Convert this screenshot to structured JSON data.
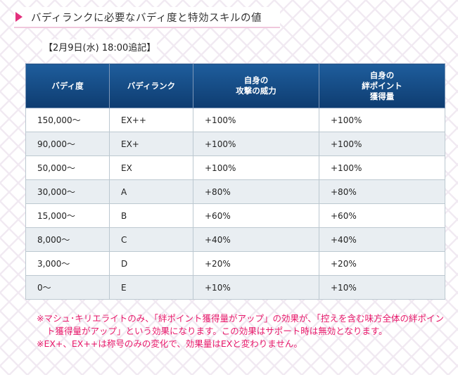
{
  "heading": {
    "title": "バディランクに必要なバディ度と特効スキルの値"
  },
  "date_note": "【2月9日(水) 18:00追記】",
  "table": {
    "headers": [
      [
        "バディ度"
      ],
      [
        "バディランク"
      ],
      [
        "自身の",
        "攻撃の威力"
      ],
      [
        "自身の",
        "絆ポイント",
        "獲得量"
      ]
    ],
    "rows": [
      [
        "150,000〜",
        "EX++",
        "+100%",
        "+100%"
      ],
      [
        "90,000〜",
        "EX+",
        "+100%",
        "+100%"
      ],
      [
        "50,000〜",
        "EX",
        "+100%",
        "+100%"
      ],
      [
        "30,000〜",
        "A",
        "+80%",
        "+80%"
      ],
      [
        "15,000〜",
        "B",
        "+60%",
        "+60%"
      ],
      [
        "8,000〜",
        "C",
        "+40%",
        "+40%"
      ],
      [
        "3,000〜",
        "D",
        "+20%",
        "+20%"
      ],
      [
        "0〜",
        "E",
        "+10%",
        "+10%"
      ]
    ]
  },
  "notes": [
    "※マシュ･キリエライトのみ、「絆ポイント獲得量がアップ」の効果が、「控えを含む味方全体の絆ポイント獲得量がアップ」という効果になります。この効果はサポート時は無効となります。",
    "※EX+、EX++は称号のみの変化で、効果量はEXと変わりません。"
  ]
}
